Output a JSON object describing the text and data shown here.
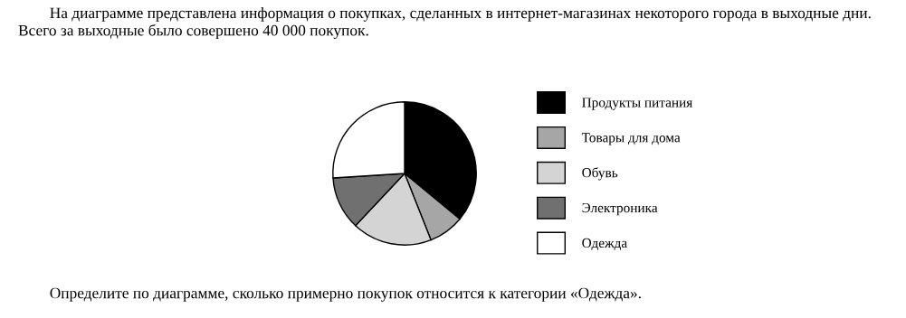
{
  "chart_data": {
    "type": "pie",
    "title": "На диаграмме представлена информация о покупках, сделанных в интернет-магазинах некоторого города в выходные дни. Всего за выходные было совершено 40 000 покупок.",
    "annotations": [
      "Определите по диаграмме, сколько примерно покупок относится к категории «Одежда»."
    ],
    "categories": [
      "Продукты питания",
      "Товары для дома",
      "Обувь",
      "Электроника",
      "Одежда"
    ],
    "values": [
      36,
      8,
      18,
      12,
      26
    ],
    "colors": [
      "#000000",
      "#a6a6a6",
      "#d4d4d4",
      "#707070",
      "#ffffff"
    ],
    "legend": "right"
  }
}
